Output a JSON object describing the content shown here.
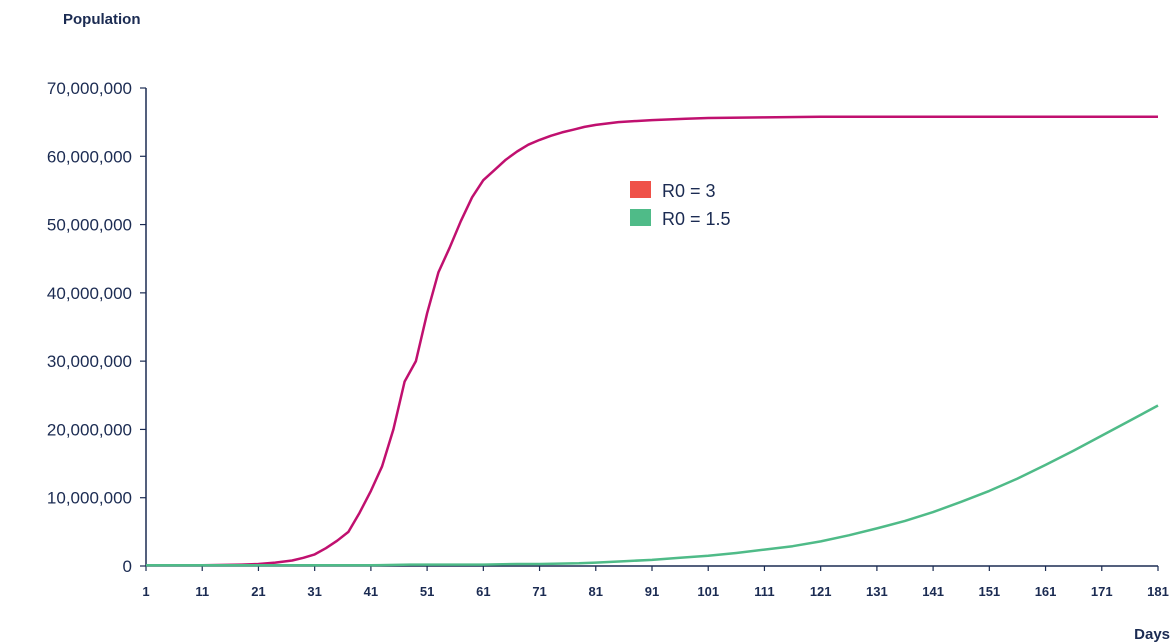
{
  "chart_data": {
    "type": "line",
    "ylabel": "Population",
    "xlabel": "Days",
    "ylim": [
      0,
      70000000
    ],
    "xlim": [
      1,
      181
    ],
    "y_ticks": [
      "0",
      "10,000,000",
      "20,000,000",
      "30,000,000",
      "40,000,000",
      "50,000,000",
      "60,000,000",
      "70,000,000"
    ],
    "y_tick_values": [
      0,
      10000000,
      20000000,
      30000000,
      40000000,
      50000000,
      60000000,
      70000000
    ],
    "x_ticks": [
      "1",
      "11",
      "21",
      "31",
      "41",
      "51",
      "61",
      "71",
      "81",
      "91",
      "101",
      "111",
      "121",
      "131",
      "141",
      "151",
      "161",
      "171",
      "181"
    ],
    "x_tick_values": [
      1,
      11,
      21,
      31,
      41,
      51,
      61,
      71,
      81,
      91,
      101,
      111,
      121,
      131,
      141,
      151,
      161,
      171,
      181
    ],
    "legend_position": "center",
    "series": [
      {
        "name": "R0 = 3",
        "legend_color": "#ef5148",
        "line_color": "#c0106f",
        "x": [
          1,
          11,
          18,
          21,
          24,
          27,
          29,
          31,
          33,
          35,
          37,
          39,
          41,
          43,
          45,
          47,
          49,
          51,
          53,
          55,
          57,
          59,
          61,
          63,
          65,
          67,
          69,
          71,
          73,
          75,
          77,
          79,
          81,
          85,
          91,
          97,
          101,
          111,
          121,
          131,
          141,
          151,
          161,
          171,
          181
        ],
        "values": [
          100000,
          100000,
          200000,
          300000,
          500000,
          800000,
          1200000,
          1700000,
          2600000,
          3700000,
          5000000,
          7800000,
          11000000,
          14600000,
          20000000,
          27000000,
          30000000,
          37000000,
          43000000,
          46600000,
          50500000,
          54000000,
          56500000,
          58000000,
          59500000,
          60700000,
          61700000,
          62400000,
          63000000,
          63500000,
          63900000,
          64300000,
          64600000,
          65000000,
          65300000,
          65500000,
          65600000,
          65700000,
          65800000,
          65800000,
          65800000,
          65800000,
          65800000,
          65800000,
          65800000
        ]
      },
      {
        "name": "R0 = 1.5",
        "legend_color": "#4fbb88",
        "line_color": "#4fbb88",
        "x": [
          1,
          11,
          21,
          31,
          41,
          48,
          51,
          61,
          67,
          71,
          78,
          81,
          86,
          91,
          96,
          101,
          106,
          111,
          116,
          121,
          126,
          131,
          136,
          141,
          146,
          151,
          156,
          161,
          166,
          171,
          176,
          181
        ],
        "values": [
          100000,
          100000,
          100000,
          100000,
          100000,
          200000,
          200000,
          200000,
          300000,
          300000,
          400000,
          500000,
          700000,
          900000,
          1200000,
          1500000,
          1900000,
          2400000,
          2900000,
          3600000,
          4500000,
          5500000,
          6600000,
          7900000,
          9400000,
          11000000,
          12800000,
          14800000,
          16900000,
          19100000,
          21300000,
          23500000
        ]
      }
    ]
  }
}
